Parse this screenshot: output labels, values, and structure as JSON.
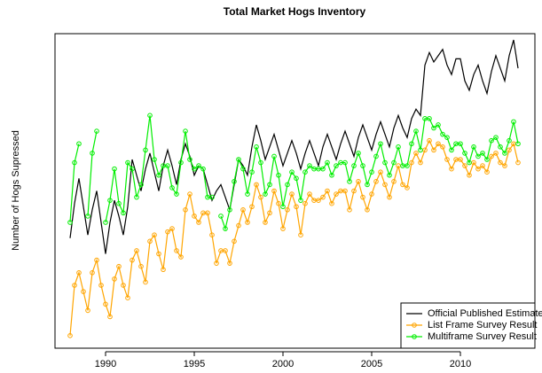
{
  "chart_data": {
    "type": "line",
    "title": "Total Market Hogs Inventory",
    "y_label": "Number of Hogs Supressed",
    "legend": "bottomright",
    "xlim": [
      1987.15,
      2014.2
    ],
    "xticks": [
      1990,
      1995,
      2000,
      2005,
      2010
    ],
    "ylim": [
      0,
      100
    ],
    "x": [
      1988,
      1988.25,
      1988.5,
      1988.75,
      1989,
      1989.25,
      1989.5,
      1989.75,
      1990,
      1990.25,
      1990.5,
      1990.75,
      1991,
      1991.25,
      1991.5,
      1991.75,
      1992,
      1992.25,
      1992.5,
      1992.75,
      1993,
      1993.25,
      1993.5,
      1993.75,
      1994,
      1994.25,
      1994.5,
      1994.75,
      1995,
      1995.25,
      1995.5,
      1995.75,
      1996,
      1996.25,
      1996.5,
      1996.75,
      1997,
      1997.25,
      1997.5,
      1997.75,
      1998,
      1998.25,
      1998.5,
      1998.75,
      1999,
      1999.25,
      1999.5,
      1999.75,
      2000,
      2000.25,
      2000.5,
      2000.75,
      2001,
      2001.25,
      2001.5,
      2001.75,
      2002,
      2002.25,
      2002.5,
      2002.75,
      2003,
      2003.25,
      2003.5,
      2003.75,
      2004,
      2004.25,
      2004.5,
      2004.75,
      2005,
      2005.25,
      2005.5,
      2005.75,
      2006,
      2006.25,
      2006.5,
      2006.75,
      2007,
      2007.25,
      2007.5,
      2007.75,
      2008,
      2008.25,
      2008.5,
      2008.75,
      2009,
      2009.25,
      2009.5,
      2009.75,
      2010,
      2010.25,
      2010.5,
      2010.75,
      2011,
      2011.25,
      2011.5,
      2011.75,
      2012,
      2012.25,
      2012.5,
      2012.75,
      2013,
      2013.25
    ],
    "series": [
      {
        "name": "Official Published Estimate",
        "color": "#000000",
        "markers": false,
        "values": [
          35,
          46,
          54,
          45,
          36,
          44,
          50,
          40,
          30,
          40,
          47,
          42,
          36,
          45,
          60,
          55,
          50,
          57,
          62,
          56,
          50,
          58,
          63,
          58,
          52,
          60,
          65,
          61,
          55,
          58,
          57,
          52,
          47,
          50,
          52,
          48,
          44,
          52,
          60,
          58,
          55,
          64,
          71,
          66,
          60,
          64,
          68,
          63,
          58,
          62,
          66,
          62,
          57,
          62,
          66,
          62,
          58,
          64,
          68,
          64,
          60,
          65,
          69,
          65,
          61,
          67,
          71,
          67,
          63,
          68,
          72,
          68,
          64,
          70,
          74,
          70,
          67,
          73,
          76,
          74,
          90,
          94,
          91,
          93,
          95,
          90,
          87,
          92,
          92,
          85,
          82,
          87,
          90,
          85,
          81,
          88,
          93,
          89,
          85,
          93,
          98,
          89
        ]
      },
      {
        "name": "List Frame Survey Result",
        "color": "#ffa500",
        "markers": true,
        "values": [
          4,
          20,
          24,
          18,
          12,
          24,
          28,
          20,
          14,
          10,
          22,
          26,
          20,
          16,
          28,
          31,
          26,
          21,
          34,
          36,
          30,
          25,
          37,
          38,
          31,
          29,
          44,
          49,
          42,
          40,
          43,
          43,
          36,
          27,
          31,
          31,
          27,
          34,
          39,
          44,
          40,
          45,
          52,
          48,
          40,
          43,
          50,
          46,
          38,
          44,
          49,
          45,
          36,
          46,
          49,
          47,
          47,
          48,
          50,
          46,
          49,
          50,
          50,
          44,
          50,
          53,
          48,
          44,
          49,
          53,
          56,
          52,
          48,
          53,
          58,
          52,
          51,
          59,
          62,
          59,
          63,
          66,
          63,
          65,
          64,
          60,
          57,
          60,
          60,
          58,
          55,
          59,
          57,
          58,
          56,
          61,
          62,
          59,
          58,
          63,
          65,
          59
        ]
      },
      {
        "name": "Multiframe Survey Result",
        "color": "#00ee00",
        "markers": true,
        "values": [
          40,
          59,
          65,
          null,
          42,
          62,
          69,
          null,
          40,
          47,
          57,
          46,
          43,
          59,
          57,
          48,
          52,
          63,
          74,
          60,
          55,
          58,
          58,
          51,
          49,
          59,
          69,
          60,
          57,
          58,
          57,
          48,
          48,
          null,
          42,
          38,
          44,
          53,
          60,
          57,
          49,
          56,
          64,
          59,
          49,
          52,
          61,
          55,
          45,
          52,
          56,
          54,
          47,
          56,
          58,
          57,
          57,
          57,
          59,
          55,
          58,
          59,
          59,
          53,
          58,
          62,
          58,
          52,
          56,
          61,
          65,
          59,
          55,
          59,
          64,
          58,
          58,
          65,
          69,
          63,
          73,
          73,
          70,
          71,
          68,
          67,
          63,
          65,
          65,
          62,
          59,
          64,
          61,
          62,
          60,
          66,
          67,
          64,
          62,
          66,
          72,
          65
        ]
      }
    ]
  }
}
